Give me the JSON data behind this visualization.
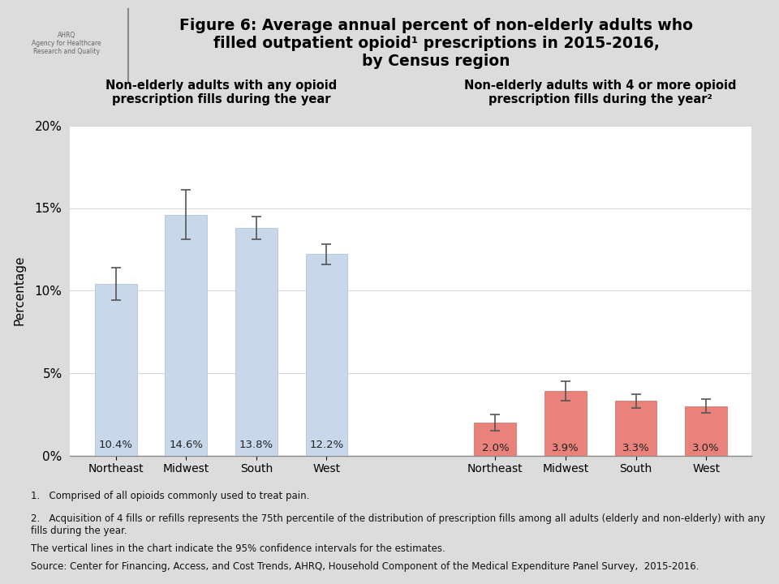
{
  "title_line1": "Figure 6: Average annual percent of non-elderly adults who",
  "title_line2": "filled outpatient opioid¹ prescriptions in 2015-2016,",
  "title_line3": "by Census region",
  "group1_label": "Non-elderly adults with any opioid\nprescription fills during the year",
  "group2_label": "Non-elderly adults with 4 or more opioid\nprescription fills during the year²",
  "categories": [
    "Northeast",
    "Midwest",
    "South",
    "West"
  ],
  "group1_values": [
    10.4,
    14.6,
    13.8,
    12.2
  ],
  "group1_errors_lo": [
    1.0,
    1.5,
    0.7,
    0.6
  ],
  "group1_errors_hi": [
    1.0,
    1.5,
    0.7,
    0.6
  ],
  "group2_values": [
    2.0,
    3.9,
    3.3,
    3.0
  ],
  "group2_errors_lo": [
    0.5,
    0.6,
    0.4,
    0.4
  ],
  "group2_errors_hi": [
    0.5,
    0.6,
    0.4,
    0.4
  ],
  "group1_color": "#c8d8ea",
  "group2_color": "#e8827a",
  "ylabel": "Percentage",
  "ylim": [
    0,
    20
  ],
  "yticks": [
    0,
    5,
    10,
    15,
    20
  ],
  "ytick_labels": [
    "0%",
    "5%",
    "10%",
    "15%",
    "20%"
  ],
  "background_color": "#dcdcdc",
  "plot_background": "#ffffff",
  "footnote1": "1.   Comprised of all opioids commonly used to treat pain.",
  "footnote2": "2.   Acquisition of 4 fills or refills represents the 75th percentile of the distribution of prescription fills among all adults (elderly and non-elderly) with any fills during the year.",
  "footnote3": "The vertical lines in the chart indicate the 95% confidence intervals for the estimates.",
  "footnote4": "Source: Center for Financing, Access, and Cost Trends, AHRQ, Household Component of the Medical Expenditure Panel Survey,  2015-2016.",
  "bar_width": 0.6,
  "group1_label_fontsize": 10.5,
  "group2_label_fontsize": 10.5,
  "value_fontsize": 9.5,
  "title_fontsize": 13.5
}
